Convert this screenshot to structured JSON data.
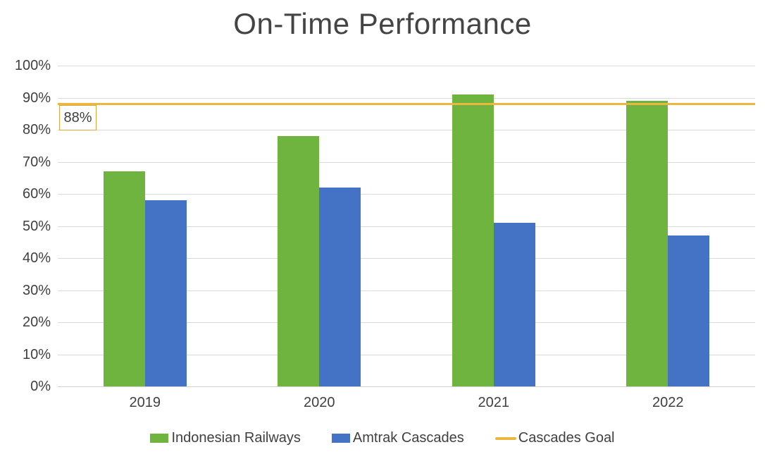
{
  "chart_data": {
    "type": "bar",
    "title": "On-Time Performance",
    "categories": [
      "2019",
      "2020",
      "2021",
      "2022"
    ],
    "series": [
      {
        "name": "Indonesian Railways",
        "color": "#6EB43E",
        "values": [
          67,
          78,
          91,
          89
        ]
      },
      {
        "name": "Amtrak Cascades",
        "color": "#4472C4",
        "values": [
          58,
          62,
          51,
          47
        ]
      }
    ],
    "goal_line": {
      "name": "Cascades Goal",
      "value": 88,
      "label": "88%",
      "color": "#ECB73E"
    },
    "y_ticks": [
      "100%",
      "90%",
      "80%",
      "70%",
      "60%",
      "50%",
      "40%",
      "30%",
      "20%",
      "10%",
      "0%"
    ],
    "ylim": [
      0,
      100
    ],
    "xlabel": "",
    "ylabel": "",
    "grid": true,
    "legend_position": "bottom",
    "colors": {
      "gridline": "#D9D9D9",
      "axis_line": "#D0D0D0",
      "axis_text": "#404040",
      "title_text": "#444444",
      "goal_label_border": "#E2A43B",
      "background": "#FFFFFF"
    }
  }
}
